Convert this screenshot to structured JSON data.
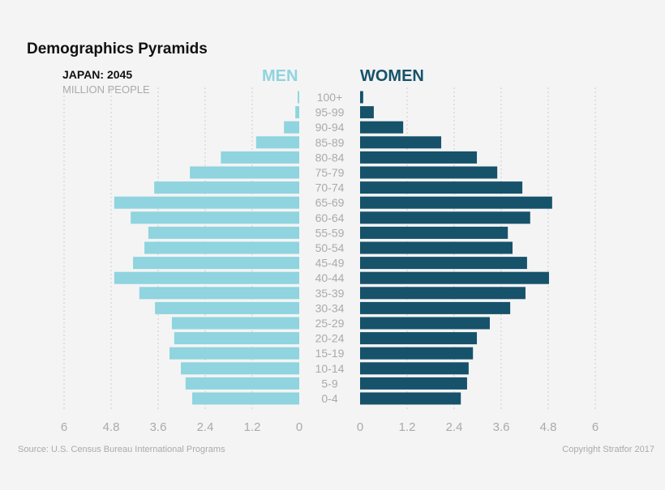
{
  "chart_data": {
    "type": "bar",
    "title": "Demographics Pyramids",
    "subtitle": "JAPAN: 2045",
    "unit_label": "MILLION PEOPLE",
    "categories": [
      "100+",
      "95-99",
      "90-94",
      "85-89",
      "80-84",
      "75-79",
      "70-74",
      "65-69",
      "60-64",
      "55-59",
      "50-54",
      "45-49",
      "40-44",
      "35-39",
      "30-34",
      "25-29",
      "20-24",
      "15-19",
      "10-14",
      "5-9",
      "0-4"
    ],
    "series": [
      {
        "name": "MEN",
        "color": "#8fd4df",
        "values": [
          0.04,
          0.1,
          0.39,
          1.1,
          2.0,
          2.79,
          3.7,
          4.72,
          4.3,
          3.85,
          3.95,
          4.24,
          4.72,
          4.08,
          3.68,
          3.25,
          3.19,
          3.31,
          3.02,
          2.9,
          2.73
        ]
      },
      {
        "name": "WOMEN",
        "color": "#17526b",
        "values": [
          0.08,
          0.35,
          1.1,
          2.07,
          2.98,
          3.5,
          4.14,
          4.9,
          4.34,
          3.77,
          3.89,
          4.26,
          4.82,
          4.22,
          3.83,
          3.31,
          2.98,
          2.88,
          2.77,
          2.73,
          2.57
        ]
      }
    ],
    "xlim": [
      0,
      6
    ],
    "x_ticks_men": [
      "6",
      "4.8",
      "3.6",
      "2.4",
      "1.2",
      "0"
    ],
    "x_ticks_women": [
      "0",
      "1.2",
      "2.4",
      "3.6",
      "4.8",
      "6"
    ],
    "grid": true
  },
  "footer": {
    "source": "Source: U.S. Census Bureau International Programs",
    "copyright": "Copyright Stratfor 2017"
  }
}
